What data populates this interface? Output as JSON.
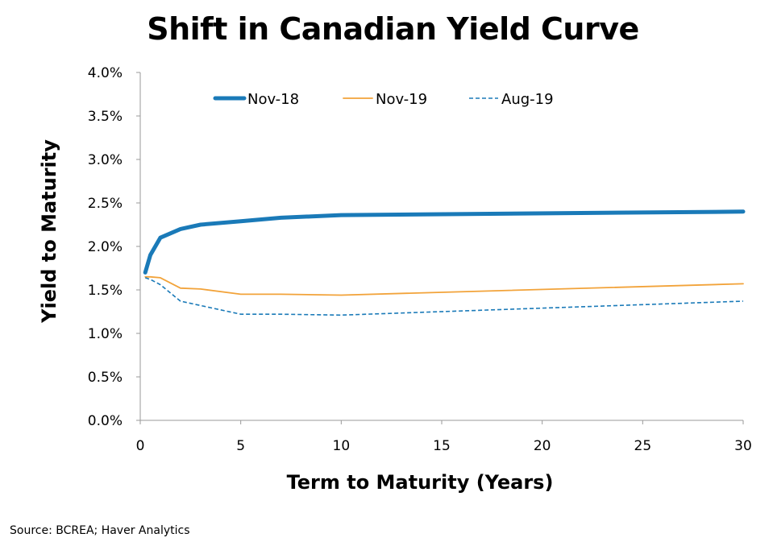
{
  "chart_data": {
    "type": "line",
    "title": "Shift in Canadian Yield Curve",
    "xlabel": "Term to Maturity (Years)",
    "ylabel": "Yield to Maturity",
    "xlim": [
      0,
      30
    ],
    "ylim": [
      0,
      4.0
    ],
    "x_ticks": [
      0,
      5,
      10,
      15,
      20,
      25,
      30
    ],
    "x_tick_labels": [
      "0",
      "5",
      "10",
      "15",
      "20",
      "25",
      "30"
    ],
    "y_ticks": [
      0,
      0.5,
      1.0,
      1.5,
      2.0,
      2.5,
      3.0,
      3.5,
      4.0
    ],
    "y_tick_labels": [
      "0.0%",
      "0.5%",
      "1.0%",
      "1.5%",
      "2.0%",
      "2.5%",
      "3.0%",
      "3.5%",
      "4.0%"
    ],
    "grid": false,
    "legend_position": "top",
    "x": [
      0.25,
      0.5,
      1,
      2,
      3,
      5,
      7,
      10,
      30
    ],
    "series": [
      {
        "name": "Nov-18",
        "color": "#1a7ab8",
        "style": "solid-thick",
        "values": [
          1.7,
          1.9,
          2.1,
          2.2,
          2.25,
          2.29,
          2.33,
          2.36,
          2.4
        ]
      },
      {
        "name": "Nov-19",
        "color": "#f2a33a",
        "style": "solid-thin",
        "values": [
          1.65,
          1.65,
          1.64,
          1.52,
          1.51,
          1.45,
          1.45,
          1.44,
          1.57
        ]
      },
      {
        "name": "Aug-19",
        "color": "#1a7ab8",
        "style": "dashed",
        "values": [
          1.64,
          1.62,
          1.56,
          1.37,
          1.32,
          1.22,
          1.22,
          1.21,
          1.37
        ]
      }
    ]
  },
  "source": "Source: BCREA; Haver Analytics"
}
